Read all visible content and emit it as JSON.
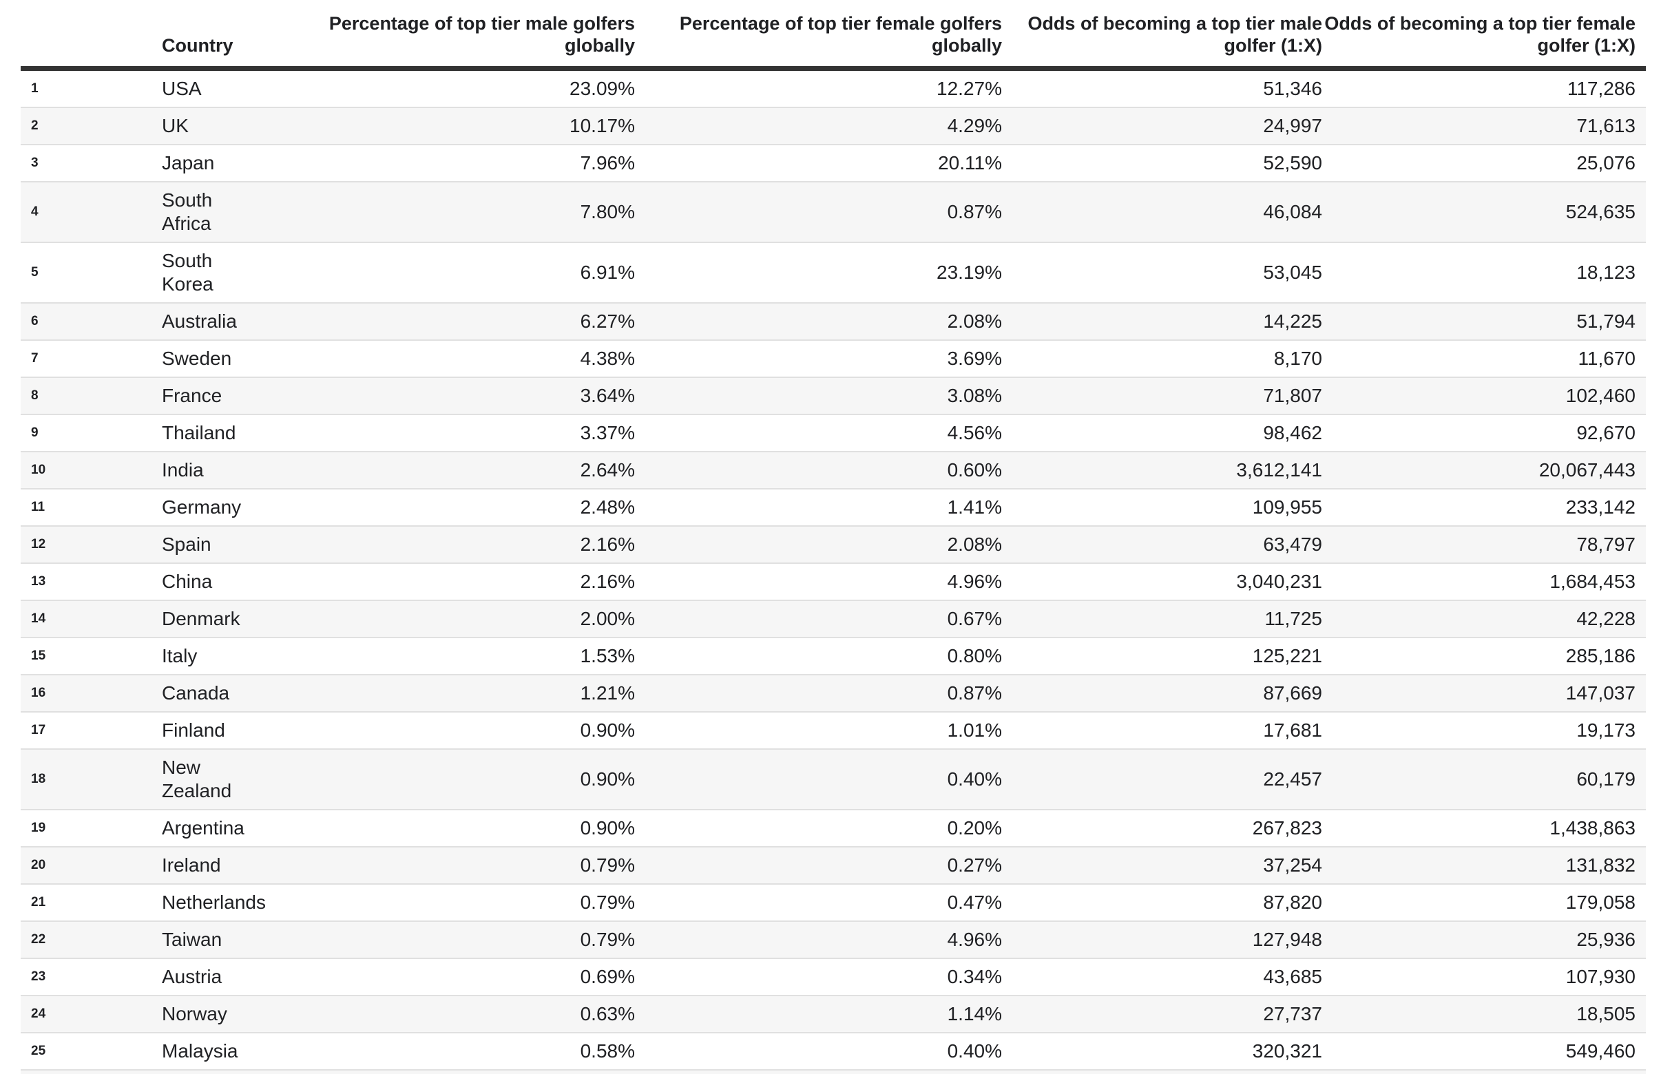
{
  "colors": {
    "text": "#202124",
    "stripe": "#f6f6f6",
    "divider": "#e0e0e0",
    "header_border": "#333333"
  },
  "chart_data": {
    "type": "table",
    "title": "",
    "columns": [
      {
        "key": "rank",
        "label": ""
      },
      {
        "key": "country",
        "label": "Country"
      },
      {
        "key": "male_pct",
        "label": "Percentage of top tier male golfers globally"
      },
      {
        "key": "female_pct",
        "label": "Percentage of top tier female golfers globally"
      },
      {
        "key": "odds_male",
        "label": "Odds of becoming a top tier male golfer (1:X)"
      },
      {
        "key": "odds_female",
        "label": "Odds of becoming a top tier female golfer (1:X)"
      }
    ],
    "rows": [
      {
        "rank": "1",
        "country": "USA",
        "two_line": false,
        "male_pct": "23.09%",
        "female_pct": "12.27%",
        "odds_male": "51,346",
        "odds_female": "117,286"
      },
      {
        "rank": "2",
        "country": "UK",
        "two_line": false,
        "male_pct": "10.17%",
        "female_pct": "4.29%",
        "odds_male": "24,997",
        "odds_female": "71,613"
      },
      {
        "rank": "3",
        "country": "Japan",
        "two_line": false,
        "male_pct": "7.96%",
        "female_pct": "20.11%",
        "odds_male": "52,590",
        "odds_female": "25,076"
      },
      {
        "rank": "4",
        "country": "South Africa",
        "two_line": true,
        "male_pct": "7.80%",
        "female_pct": "0.87%",
        "odds_male": "46,084",
        "odds_female": "524,635"
      },
      {
        "rank": "5",
        "country": "South Korea",
        "two_line": true,
        "male_pct": "6.91%",
        "female_pct": "23.19%",
        "odds_male": "53,045",
        "odds_female": "18,123"
      },
      {
        "rank": "6",
        "country": "Australia",
        "two_line": false,
        "male_pct": "6.27%",
        "female_pct": "2.08%",
        "odds_male": "14,225",
        "odds_female": "51,794"
      },
      {
        "rank": "7",
        "country": "Sweden",
        "two_line": false,
        "male_pct": "4.38%",
        "female_pct": "3.69%",
        "odds_male": "8,170",
        "odds_female": "11,670"
      },
      {
        "rank": "8",
        "country": "France",
        "two_line": false,
        "male_pct": "3.64%",
        "female_pct": "3.08%",
        "odds_male": "71,807",
        "odds_female": "102,460"
      },
      {
        "rank": "9",
        "country": "Thailand",
        "two_line": false,
        "male_pct": "3.37%",
        "female_pct": "4.56%",
        "odds_male": "98,462",
        "odds_female": "92,670"
      },
      {
        "rank": "10",
        "country": "India",
        "two_line": false,
        "male_pct": "2.64%",
        "female_pct": "0.60%",
        "odds_male": "3,612,141",
        "odds_female": "20,067,443"
      },
      {
        "rank": "11",
        "country": "Germany",
        "two_line": false,
        "male_pct": "2.48%",
        "female_pct": "1.41%",
        "odds_male": "109,955",
        "odds_female": "233,142"
      },
      {
        "rank": "12",
        "country": "Spain",
        "two_line": false,
        "male_pct": "2.16%",
        "female_pct": "2.08%",
        "odds_male": "63,479",
        "odds_female": "78,797"
      },
      {
        "rank": "13",
        "country": "China",
        "two_line": false,
        "male_pct": "2.16%",
        "female_pct": "4.96%",
        "odds_male": "3,040,231",
        "odds_female": "1,684,453"
      },
      {
        "rank": "14",
        "country": "Denmark",
        "two_line": false,
        "male_pct": "2.00%",
        "female_pct": "0.67%",
        "odds_male": "11,725",
        "odds_female": "42,228"
      },
      {
        "rank": "15",
        "country": "Italy",
        "two_line": false,
        "male_pct": "1.53%",
        "female_pct": "0.80%",
        "odds_male": "125,221",
        "odds_female": "285,186"
      },
      {
        "rank": "16",
        "country": "Canada",
        "two_line": false,
        "male_pct": "1.21%",
        "female_pct": "0.87%",
        "odds_male": "87,669",
        "odds_female": "147,037"
      },
      {
        "rank": "17",
        "country": "Finland",
        "two_line": false,
        "male_pct": "0.90%",
        "female_pct": "1.01%",
        "odds_male": "17,681",
        "odds_female": "19,173"
      },
      {
        "rank": "18",
        "country": "New Zealand",
        "two_line": true,
        "male_pct": "0.90%",
        "female_pct": "0.40%",
        "odds_male": "22,457",
        "odds_female": "60,179"
      },
      {
        "rank": "19",
        "country": "Argentina",
        "two_line": false,
        "male_pct": "0.90%",
        "female_pct": "0.20%",
        "odds_male": "267,823",
        "odds_female": "1,438,863"
      },
      {
        "rank": "20",
        "country": "Ireland",
        "two_line": false,
        "male_pct": "0.79%",
        "female_pct": "0.27%",
        "odds_male": "37,254",
        "odds_female": "131,832"
      },
      {
        "rank": "21",
        "country": "Netherlands",
        "two_line": false,
        "male_pct": "0.79%",
        "female_pct": "0.47%",
        "odds_male": "87,820",
        "odds_female": "179,058"
      },
      {
        "rank": "22",
        "country": "Taiwan",
        "two_line": false,
        "male_pct": "0.79%",
        "female_pct": "4.96%",
        "odds_male": "127,948",
        "odds_female": "25,936"
      },
      {
        "rank": "23",
        "country": "Austria",
        "two_line": false,
        "male_pct": "0.69%",
        "female_pct": "0.34%",
        "odds_male": "43,685",
        "odds_female": "107,930"
      },
      {
        "rank": "24",
        "country": "Norway",
        "two_line": false,
        "male_pct": "0.63%",
        "female_pct": "1.14%",
        "odds_male": "27,737",
        "odds_female": "18,505"
      },
      {
        "rank": "25",
        "country": "Malaysia",
        "two_line": false,
        "male_pct": "0.58%",
        "female_pct": "0.40%",
        "odds_male": "320,321",
        "odds_female": "549,460"
      }
    ]
  }
}
